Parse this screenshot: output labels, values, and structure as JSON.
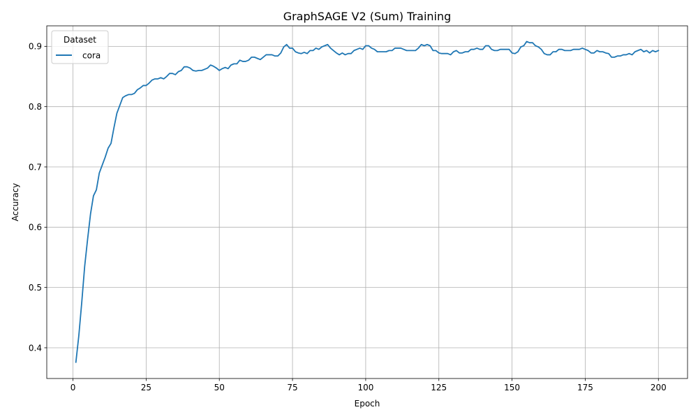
{
  "chart_data": {
    "type": "line",
    "title": "GraphSAGE V2 (Sum) Training",
    "xlabel": "Epoch",
    "ylabel": "Accuracy",
    "xlim": [
      -8.95,
      209.95
    ],
    "ylim": [
      0.349,
      0.934
    ],
    "xticks": [
      0,
      25,
      50,
      75,
      100,
      125,
      150,
      175,
      200
    ],
    "yticks": [
      0.4,
      0.5,
      0.6,
      0.7,
      0.8,
      0.9
    ],
    "xtick_labels": [
      "0",
      "25",
      "50",
      "75",
      "100",
      "125",
      "150",
      "175",
      "200"
    ],
    "ytick_labels": [
      "0.4",
      "0.5",
      "0.6",
      "0.7",
      "0.8",
      "0.9"
    ],
    "grid": true,
    "legend": {
      "title": "Dataset",
      "placement": "top-left"
    },
    "series": [
      {
        "name": "cora",
        "color": "#1f77b4",
        "x": [
          1,
          2,
          3,
          4,
          5,
          6,
          7,
          8,
          9,
          10,
          11,
          12,
          13,
          14,
          15,
          16,
          17,
          18,
          19,
          20,
          21,
          22,
          23,
          24,
          25,
          26,
          27,
          28,
          29,
          30,
          31,
          32,
          33,
          34,
          35,
          36,
          37,
          38,
          39,
          40,
          41,
          42,
          43,
          44,
          45,
          46,
          47,
          48,
          49,
          50,
          51,
          52,
          53,
          54,
          55,
          56,
          57,
          58,
          59,
          60,
          61,
          62,
          63,
          64,
          65,
          66,
          67,
          68,
          69,
          70,
          71,
          72,
          73,
          74,
          75,
          76,
          77,
          78,
          79,
          80,
          81,
          82,
          83,
          84,
          85,
          86,
          87,
          88,
          89,
          90,
          91,
          92,
          93,
          94,
          95,
          96,
          97,
          98,
          99,
          100,
          101,
          102,
          103,
          104,
          105,
          106,
          107,
          108,
          109,
          110,
          111,
          112,
          113,
          114,
          115,
          116,
          117,
          118,
          119,
          120,
          121,
          122,
          123,
          124,
          125,
          126,
          127,
          128,
          129,
          130,
          131,
          132,
          133,
          134,
          135,
          136,
          137,
          138,
          139,
          140,
          141,
          142,
          143,
          144,
          145,
          146,
          147,
          148,
          149,
          150,
          151,
          152,
          153,
          154,
          155,
          156,
          157,
          158,
          159,
          160,
          161,
          162,
          163,
          164,
          165,
          166,
          167,
          168,
          169,
          170,
          171,
          172,
          173,
          174,
          175,
          176,
          177,
          178,
          179,
          180,
          181,
          182,
          183,
          184,
          185,
          186,
          187,
          188,
          189,
          190,
          191,
          192,
          193,
          194,
          195,
          196,
          197,
          198,
          199,
          200
        ],
        "values": [
          0.376,
          0.42,
          0.475,
          0.535,
          0.58,
          0.622,
          0.652,
          0.662,
          0.69,
          0.703,
          0.716,
          0.731,
          0.739,
          0.765,
          0.789,
          0.802,
          0.815,
          0.818,
          0.82,
          0.82,
          0.822,
          0.828,
          0.831,
          0.835,
          0.835,
          0.839,
          0.844,
          0.846,
          0.846,
          0.848,
          0.846,
          0.85,
          0.855,
          0.855,
          0.853,
          0.858,
          0.86,
          0.866,
          0.866,
          0.864,
          0.86,
          0.859,
          0.86,
          0.86,
          0.862,
          0.864,
          0.869,
          0.867,
          0.864,
          0.86,
          0.863,
          0.865,
          0.863,
          0.869,
          0.871,
          0.871,
          0.877,
          0.875,
          0.875,
          0.877,
          0.882,
          0.882,
          0.88,
          0.878,
          0.882,
          0.886,
          0.886,
          0.886,
          0.884,
          0.884,
          0.889,
          0.899,
          0.903,
          0.897,
          0.897,
          0.891,
          0.889,
          0.888,
          0.89,
          0.888,
          0.893,
          0.893,
          0.897,
          0.895,
          0.899,
          0.901,
          0.903,
          0.897,
          0.893,
          0.889,
          0.886,
          0.889,
          0.886,
          0.888,
          0.888,
          0.893,
          0.895,
          0.897,
          0.895,
          0.901,
          0.901,
          0.897,
          0.895,
          0.891,
          0.891,
          0.891,
          0.891,
          0.893,
          0.893,
          0.897,
          0.897,
          0.897,
          0.895,
          0.893,
          0.893,
          0.893,
          0.893,
          0.897,
          0.903,
          0.901,
          0.903,
          0.901,
          0.893,
          0.893,
          0.889,
          0.888,
          0.888,
          0.888,
          0.886,
          0.891,
          0.893,
          0.889,
          0.889,
          0.891,
          0.891,
          0.895,
          0.895,
          0.897,
          0.895,
          0.895,
          0.901,
          0.901,
          0.895,
          0.893,
          0.893,
          0.895,
          0.895,
          0.895,
          0.895,
          0.889,
          0.888,
          0.891,
          0.899,
          0.901,
          0.908,
          0.906,
          0.906,
          0.901,
          0.899,
          0.895,
          0.888,
          0.886,
          0.886,
          0.891,
          0.891,
          0.895,
          0.895,
          0.893,
          0.893,
          0.893,
          0.895,
          0.895,
          0.895,
          0.897,
          0.895,
          0.893,
          0.889,
          0.889,
          0.893,
          0.891,
          0.891,
          0.889,
          0.888,
          0.882,
          0.882,
          0.884,
          0.884,
          0.886,
          0.886,
          0.888,
          0.886,
          0.891,
          0.893,
          0.895,
          0.891,
          0.893,
          0.889,
          0.893,
          0.891,
          0.893
        ]
      }
    ]
  }
}
